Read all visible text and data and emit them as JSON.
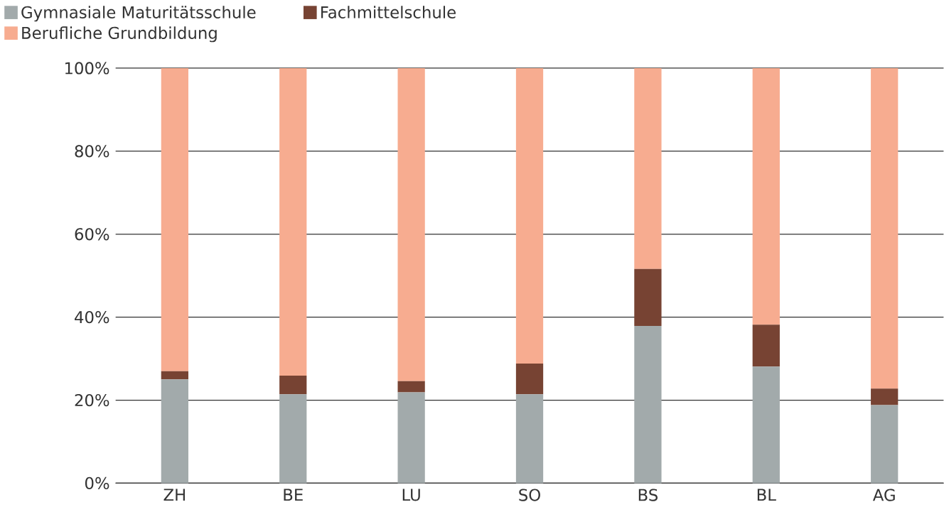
{
  "chart_data": {
    "type": "bar",
    "stacked": true,
    "categories": [
      "ZH",
      "BE",
      "LU",
      "SO",
      "BS",
      "BL",
      "AG"
    ],
    "series": [
      {
        "name": "Gymnasiale Maturitätsschule",
        "color": "#a2aaab",
        "values": [
          25.0,
          21.4,
          21.9,
          21.4,
          37.9,
          28.1,
          18.8
        ]
      },
      {
        "name": "Fachmittelschule",
        "color": "#774333",
        "values": [
          2.0,
          4.5,
          2.7,
          7.4,
          13.7,
          10.1,
          4.0
        ]
      },
      {
        "name": "Berufliche Grundbildung",
        "color": "#f7ac90",
        "values": [
          73.0,
          74.1,
          75.4,
          71.2,
          48.4,
          61.8,
          77.2
        ]
      }
    ],
    "ylim": [
      0,
      100
    ],
    "yticks": [
      {
        "value": 0,
        "label": "0%"
      },
      {
        "value": 20,
        "label": "20%"
      },
      {
        "value": 40,
        "label": "40%"
      },
      {
        "value": 60,
        "label": "60%"
      },
      {
        "value": 80,
        "label": "80%"
      },
      {
        "value": 100,
        "label": "100%"
      }
    ],
    "grid": "y",
    "legend": "top left"
  }
}
